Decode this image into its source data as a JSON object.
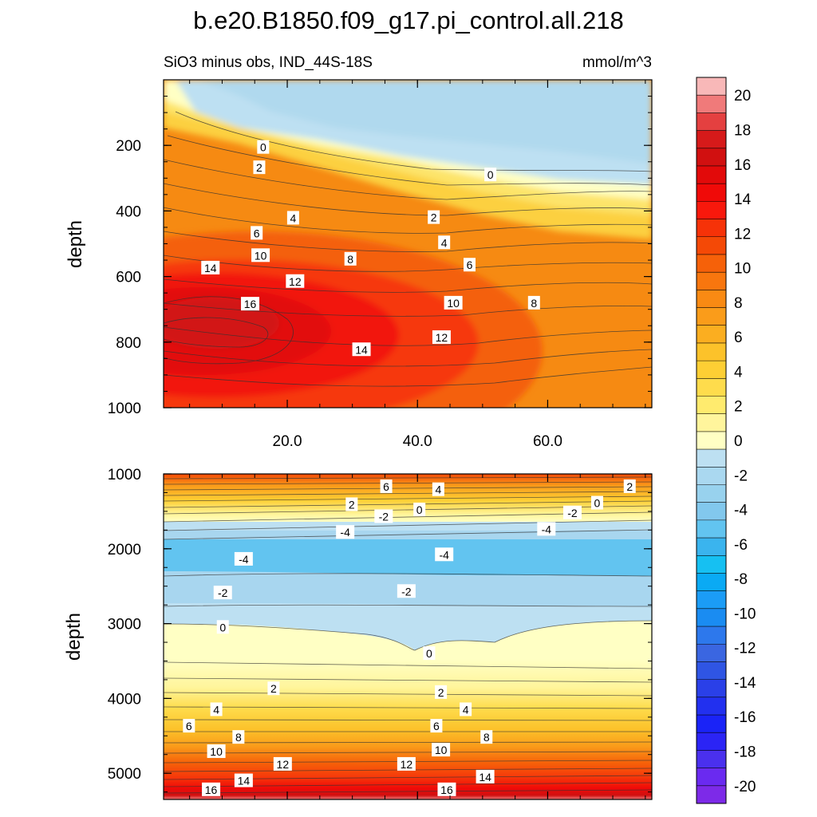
{
  "figure": {
    "title": "b.e20.B1850.f09_g17.pi_control.all.218",
    "subtitle_left": "SiO3 minus obs, IND_44S-18S",
    "subtitle_right": "mmol/m^3"
  },
  "chart_data": [
    {
      "type": "contour",
      "panel": "top",
      "ylabel": "depth",
      "xlabel": "",
      "xlim": [
        1,
        76
      ],
      "ylim": [
        1000,
        0
      ],
      "yticks": [
        200,
        400,
        600,
        800,
        1000
      ],
      "ytick_labels": [
        "200",
        "400",
        "600",
        "800",
        "1000"
      ],
      "xticks": [
        20,
        40,
        60
      ],
      "xtick_labels": [
        "20.0",
        "40.0",
        "60.0"
      ],
      "contour_labels": [
        {
          "text": "0",
          "x": 16.3,
          "y": 206
        },
        {
          "text": "2",
          "x": 15.7,
          "y": 268
        },
        {
          "text": "0",
          "x": 51.2,
          "y": 290
        },
        {
          "text": "4",
          "x": 20.9,
          "y": 422
        },
        {
          "text": "2",
          "x": 42.5,
          "y": 420
        },
        {
          "text": "6",
          "x": 15.3,
          "y": 468
        },
        {
          "text": "4",
          "x": 44.1,
          "y": 497
        },
        {
          "text": "10",
          "x": 15.9,
          "y": 536
        },
        {
          "text": "8",
          "x": 29.7,
          "y": 547
        },
        {
          "text": "6",
          "x": 48.0,
          "y": 565
        },
        {
          "text": "14",
          "x": 8.2,
          "y": 574
        },
        {
          "text": "12",
          "x": 21.2,
          "y": 615
        },
        {
          "text": "16",
          "x": 14.3,
          "y": 684
        },
        {
          "text": "10",
          "x": 45.5,
          "y": 681
        },
        {
          "text": "8",
          "x": 57.9,
          "y": 681
        },
        {
          "text": "12",
          "x": 43.7,
          "y": 786
        },
        {
          "text": "14",
          "x": 31.4,
          "y": 823
        }
      ]
    },
    {
      "type": "contour",
      "panel": "bottom",
      "ylabel": "depth",
      "xlabel": "",
      "xlim": [
        1,
        76
      ],
      "ylim": [
        5350,
        1000
      ],
      "yticks": [
        1000,
        2000,
        3000,
        4000,
        5000
      ],
      "ytick_labels": [
        "1000",
        "2000",
        "3000",
        "4000",
        "5000"
      ],
      "xticks": [
        20,
        40,
        60
      ],
      "contour_labels": [
        {
          "text": "6",
          "x": 35.2,
          "y": 1170
        },
        {
          "text": "4",
          "x": 43.2,
          "y": 1210
        },
        {
          "text": "2",
          "x": 72.6,
          "y": 1170
        },
        {
          "text": "2",
          "x": 29.9,
          "y": 1410
        },
        {
          "text": "0",
          "x": 40.3,
          "y": 1480
        },
        {
          "text": "-2",
          "x": 34.8,
          "y": 1570
        },
        {
          "text": "0",
          "x": 67.6,
          "y": 1390
        },
        {
          "text": "-2",
          "x": 63.8,
          "y": 1520
        },
        {
          "text": "-4",
          "x": 28.9,
          "y": 1780
        },
        {
          "text": "-4",
          "x": 59.8,
          "y": 1740
        },
        {
          "text": "-4",
          "x": 13.3,
          "y": 2140
        },
        {
          "text": "-4",
          "x": 44.1,
          "y": 2080
        },
        {
          "text": "-2",
          "x": 10.1,
          "y": 2590
        },
        {
          "text": "-2",
          "x": 38.3,
          "y": 2570
        },
        {
          "text": "0",
          "x": 10.1,
          "y": 3050
        },
        {
          "text": "0",
          "x": 41.8,
          "y": 3400
        },
        {
          "text": "2",
          "x": 17.9,
          "y": 3870
        },
        {
          "text": "2",
          "x": 43.6,
          "y": 3920
        },
        {
          "text": "4",
          "x": 9.1,
          "y": 4150
        },
        {
          "text": "4",
          "x": 47.4,
          "y": 4150
        },
        {
          "text": "6",
          "x": 4.9,
          "y": 4370
        },
        {
          "text": "6",
          "x": 42.9,
          "y": 4370
        },
        {
          "text": "8",
          "x": 12.5,
          "y": 4520
        },
        {
          "text": "8",
          "x": 50.6,
          "y": 4520
        },
        {
          "text": "10",
          "x": 9.1,
          "y": 4710
        },
        {
          "text": "10",
          "x": 43.6,
          "y": 4690
        },
        {
          "text": "12",
          "x": 19.3,
          "y": 4880
        },
        {
          "text": "12",
          "x": 38.3,
          "y": 4880
        },
        {
          "text": "14",
          "x": 13.3,
          "y": 5100
        },
        {
          "text": "14",
          "x": 50.4,
          "y": 5050
        },
        {
          "text": "16",
          "x": 8.3,
          "y": 5220
        },
        {
          "text": "16",
          "x": 44.5,
          "y": 5220
        }
      ]
    },
    {
      "type": "colorbar",
      "levels": [
        -20,
        -18,
        -16,
        -14,
        -12,
        -10,
        -8,
        -6,
        -4,
        -2,
        0,
        2,
        4,
        6,
        8,
        10,
        12,
        14,
        16,
        18,
        20
      ],
      "tick_labels": [
        "-20",
        "-18",
        "-16",
        "-14",
        "-12",
        "-10",
        "-8",
        "-6",
        "-4",
        "-2",
        "0",
        "2",
        "4",
        "6",
        "8",
        "10",
        "12",
        "14",
        "16",
        "18",
        "20"
      ],
      "colors_bottom_to_top": [
        "#7d2ae8",
        "#6a2af0",
        "#4a30ee",
        "#2b24f5",
        "#1a23f7",
        "#2230ef",
        "#2a40e8",
        "#2f55e4",
        "#3a66e1",
        "#2d78ec",
        "#1a8cf2",
        "#1b9cf6",
        "#0aaaf4",
        "#16c0f2",
        "#3ab4ee",
        "#62c4f0",
        "#82c8ed",
        "#98d2ee",
        "#aad8f0",
        "#bde0f2",
        "#ffffc4",
        "#fff59c",
        "#ffeb6e",
        "#fedc4c",
        "#fecf34",
        "#fcc22a",
        "#fbae20",
        "#fa9c1a",
        "#f98a13",
        "#f8760e",
        "#f66109",
        "#f44906",
        "#f63208",
        "#f8180c",
        "#f00a08",
        "#e20a0a",
        "#d11010",
        "#d61a1a",
        "#e44040",
        "#f07a7a",
        "#f8b8b8"
      ]
    }
  ]
}
